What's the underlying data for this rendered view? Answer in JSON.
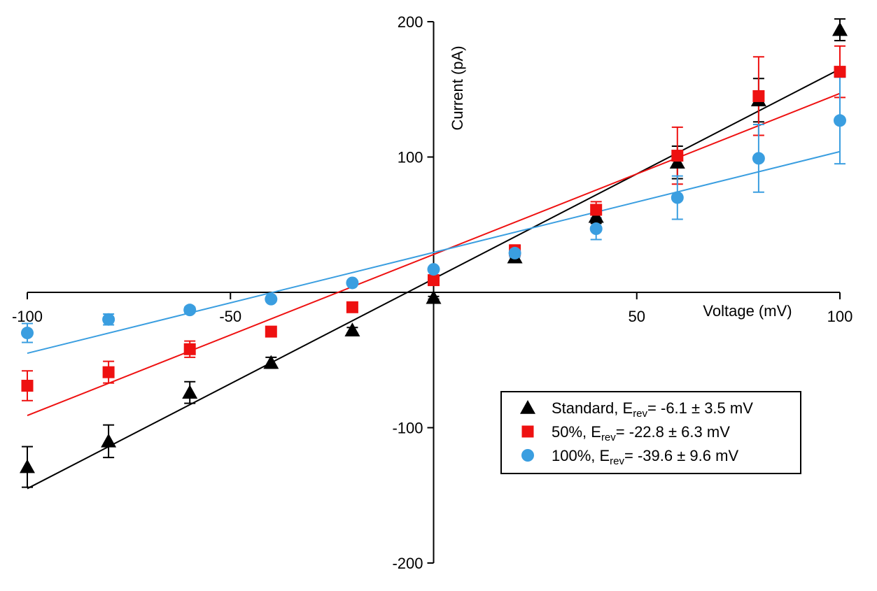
{
  "chart_data": {
    "type": "scatter",
    "title": "",
    "xlabel": "Voltage (mV)",
    "ylabel": "Current (pA)",
    "xlim": [
      -100,
      100
    ],
    "ylim": [
      -200,
      200
    ],
    "x_ticks": [
      {
        "value": -100,
        "label": "-100"
      },
      {
        "value": -50,
        "label": "-50"
      },
      {
        "value": 50,
        "label": "50"
      },
      {
        "value": 100,
        "label": "100"
      }
    ],
    "y_ticks": [
      {
        "value": 200,
        "label": "200"
      },
      {
        "value": 100,
        "label": "100"
      },
      {
        "value": -100,
        "label": "-100"
      },
      {
        "value": -200,
        "label": "-200"
      }
    ],
    "series": [
      {
        "name": "Standard",
        "marker": "triangle",
        "color": "#000000",
        "legend": {
          "prefix": "Standard, E",
          "sub": "rev",
          "suffix": "= -6.1 ± 3.5 mV"
        },
        "points": [
          {
            "x": -100,
            "y": -129,
            "err": 15
          },
          {
            "x": -80,
            "y": -110,
            "err": 12
          },
          {
            "x": -60,
            "y": -74,
            "err": 8
          },
          {
            "x": -40,
            "y": -52,
            "err": 4
          },
          {
            "x": -20,
            "y": -28,
            "err": 2
          },
          {
            "x": 0,
            "y": -4,
            "err": 1
          },
          {
            "x": 20,
            "y": 26,
            "err": 3
          },
          {
            "x": 40,
            "y": 56,
            "err": 5
          },
          {
            "x": 60,
            "y": 96,
            "err": 12
          },
          {
            "x": 80,
            "y": 142,
            "err": 16
          },
          {
            "x": 100,
            "y": 194,
            "err": 8
          }
        ],
        "fit": {
          "x": [
            -100,
            100
          ],
          "y": [
            -145,
            165
          ]
        }
      },
      {
        "name": "50%",
        "marker": "square",
        "color": "#ee1111",
        "legend": {
          "prefix": "50%, E",
          "sub": "rev",
          "suffix": "= -22.8 ± 6.3 mV"
        },
        "points": [
          {
            "x": -100,
            "y": -69,
            "err": 11
          },
          {
            "x": -80,
            "y": -59,
            "err": 8
          },
          {
            "x": -60,
            "y": -42,
            "err": 6
          },
          {
            "x": -40,
            "y": -29,
            "err": 3
          },
          {
            "x": -20,
            "y": -11,
            "err": 1
          },
          {
            "x": 0,
            "y": 9,
            "err": 1
          },
          {
            "x": 20,
            "y": 31,
            "err": 4
          },
          {
            "x": 40,
            "y": 61,
            "err": 6
          },
          {
            "x": 60,
            "y": 101,
            "err": 21
          },
          {
            "x": 80,
            "y": 145,
            "err": 29
          },
          {
            "x": 100,
            "y": 163,
            "err": 19
          }
        ],
        "fit": {
          "x": [
            -100,
            100
          ],
          "y": [
            -91,
            147
          ]
        }
      },
      {
        "name": "100%",
        "marker": "circle",
        "color": "#3a9ee0",
        "legend": {
          "prefix": "100%, E",
          "sub": "rev",
          "suffix": "= -39.6 ± 9.6 mV"
        },
        "points": [
          {
            "x": -100,
            "y": -30,
            "err": 7
          },
          {
            "x": -80,
            "y": -20,
            "err": 4
          },
          {
            "x": -60,
            "y": -13,
            "err": 2
          },
          {
            "x": -40,
            "y": -5,
            "err": 1
          },
          {
            "x": -20,
            "y": 7,
            "err": 1
          },
          {
            "x": 0,
            "y": 17,
            "err": 1
          },
          {
            "x": 20,
            "y": 29,
            "err": 3
          },
          {
            "x": 40,
            "y": 47,
            "err": 8
          },
          {
            "x": 60,
            "y": 70,
            "err": 16
          },
          {
            "x": 80,
            "y": 99,
            "err": 25
          },
          {
            "x": 100,
            "y": 127,
            "err": 32
          }
        ],
        "fit": {
          "x": [
            -100,
            100
          ],
          "y": [
            -45,
            104
          ]
        }
      }
    ]
  }
}
